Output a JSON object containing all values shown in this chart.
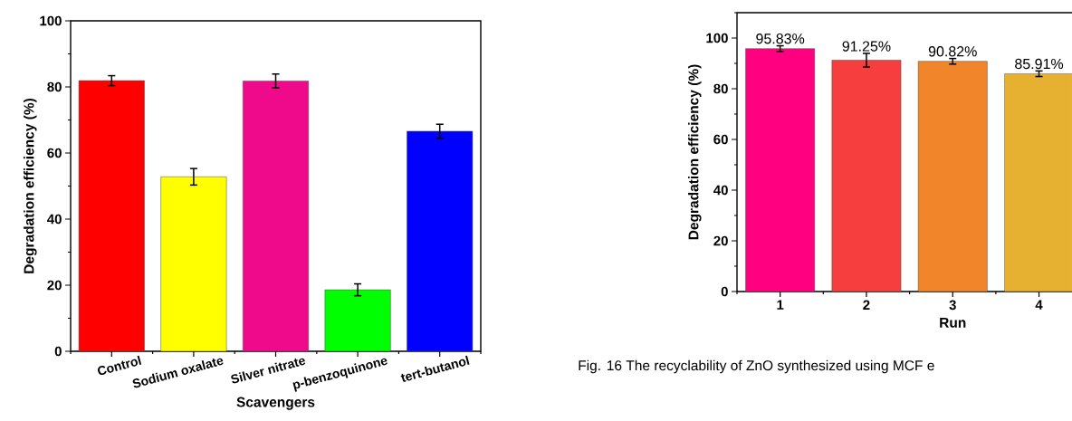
{
  "chart_data": [
    {
      "type": "bar",
      "xlabel": "Scavengers",
      "ylabel": "Degradation efficiency (%)",
      "categories": [
        "Control",
        "Sodium oxalate",
        "Silver nitrate",
        "p-benzoquinone",
        "tert-butanol"
      ],
      "values": [
        81.9,
        52.8,
        81.8,
        18.6,
        66.6
      ],
      "errors": [
        1.5,
        2.5,
        2.1,
        1.8,
        2.1
      ],
      "colors": [
        "#ff0000",
        "#ffff00",
        "#ee0a8a",
        "#00ff00",
        "#0000ff"
      ],
      "ylim": [
        0,
        100
      ],
      "yticks": [
        0,
        20,
        40,
        60,
        80,
        100
      ]
    },
    {
      "type": "bar",
      "xlabel": "Run",
      "ylabel": "Degradation efficiency (%)",
      "categories": [
        "1",
        "2",
        "3",
        "4"
      ],
      "values": [
        95.83,
        91.25,
        90.82,
        85.91
      ],
      "value_labels": [
        "95.83%",
        "91.25%",
        "90.82%",
        "85.91%"
      ],
      "errors": [
        1.1,
        2.7,
        1.1,
        1.1
      ],
      "colors": [
        "#ff0080",
        "#f73e3e",
        "#f0852a",
        "#e6b030"
      ],
      "ylim": [
        0,
        110
      ],
      "yticks": [
        0,
        20,
        40,
        60,
        80,
        100
      ],
      "annotations": [
        "Fig. 16   The recyclability of ZnO synthesized using MCF e"
      ]
    }
  ]
}
